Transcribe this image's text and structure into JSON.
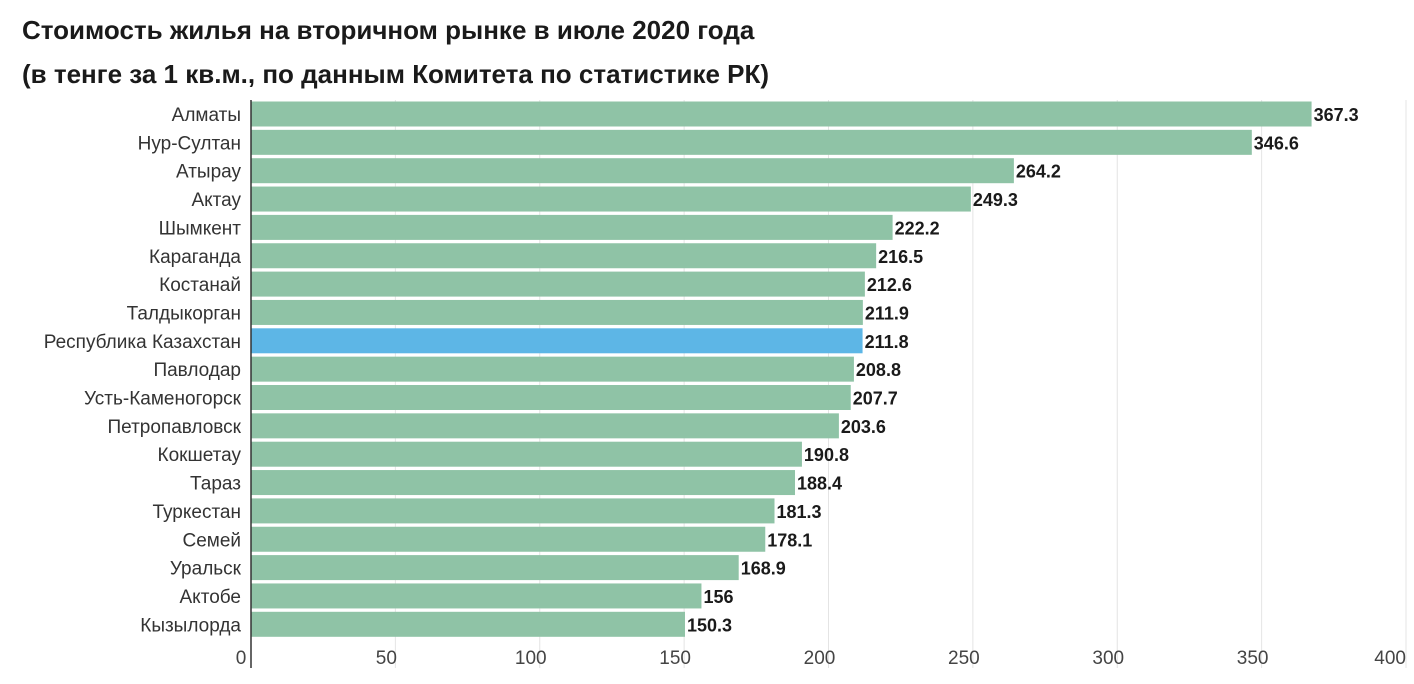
{
  "chart_data": {
    "type": "bar",
    "orientation": "horizontal",
    "title_lines": [
      "Стоимость жилья на вторичном рынке в июле 2020 года",
      "(в тенге за 1 кв.м., по данным Комитета по статистике РК)"
    ],
    "categories": [
      "Алматы",
      "Нур-Султан",
      "Атырау",
      "Актау",
      "Шымкент",
      "Караганда",
      "Костанай",
      "Талдыкорган",
      "Республика Казахстан",
      "Павлодар",
      "Усть-Каменогорск",
      "Петропавловск",
      "Кокшетау",
      "Тараз",
      "Туркестан",
      "Семей",
      "Уральск",
      "Актобе",
      "Кызылорда"
    ],
    "values": [
      367.3,
      346.6,
      264.2,
      249.3,
      222.2,
      216.5,
      212.6,
      211.9,
      211.8,
      208.8,
      207.7,
      203.6,
      190.8,
      188.4,
      181.3,
      178.1,
      168.9,
      156,
      150.3
    ],
    "value_labels": [
      "367.3",
      "346.6",
      "264.2",
      "249.3",
      "222.2",
      "216.5",
      "212.6",
      "211.9",
      "211.8",
      "208.8",
      "207.7",
      "203.6",
      "190.8",
      "188.4",
      "181.3",
      "178.1",
      "168.9",
      "156",
      "150.3"
    ],
    "highlight_category": "Республика Казахстан",
    "xlim": [
      0,
      400
    ],
    "xticks": [
      0,
      50,
      100,
      150,
      200,
      250,
      300,
      350,
      400
    ],
    "xtick_labels": [
      "0",
      "50",
      "100",
      "150",
      "200",
      "250",
      "300",
      "350",
      "400"
    ],
    "grid": "vertical",
    "colors": {
      "bar": "#8fc3a6",
      "highlight": "#5db6e6",
      "grid": "#e4e4e4",
      "axis": "#333333"
    }
  }
}
